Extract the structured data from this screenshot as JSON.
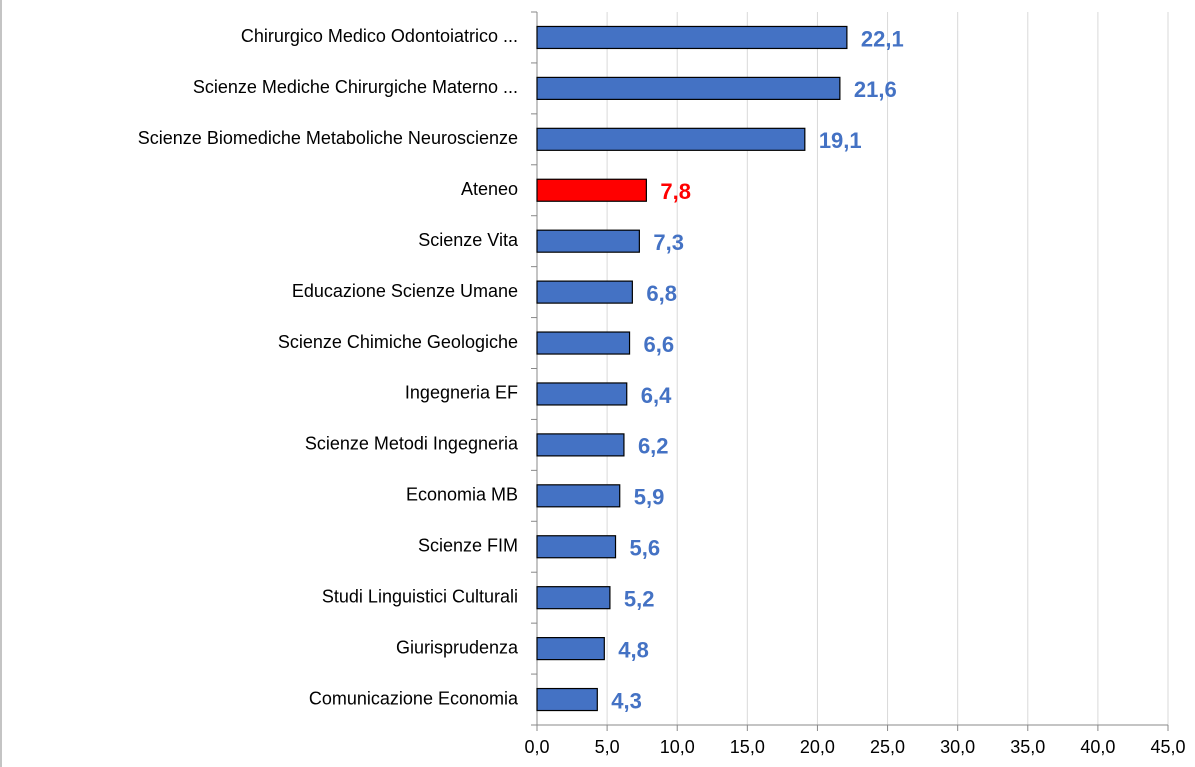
{
  "chart_data": {
    "type": "bar",
    "orientation": "horizontal",
    "categories": [
      "Chirurgico Medico Odontoiatrico ...",
      "Scienze Mediche Chirurgiche Materno ...",
      "Scienze Biomediche Metaboliche Neuroscienze",
      "Ateneo",
      "Scienze Vita",
      "Educazione Scienze Umane",
      "Scienze Chimiche Geologiche",
      "Ingegneria EF",
      "Scienze Metodi Ingegneria",
      "Economia MB",
      "Scienze FIM",
      "Studi Linguistici Culturali",
      "Giurisprudenza",
      "Comunicazione Economia"
    ],
    "values": [
      22.1,
      21.6,
      19.1,
      7.8,
      7.3,
      6.8,
      6.6,
      6.4,
      6.2,
      5.9,
      5.6,
      5.2,
      4.8,
      4.3
    ],
    "value_labels": [
      "22,1",
      "21,6",
      "19,1",
      "7,8",
      "7,3",
      "6,8",
      "6,6",
      "6,4",
      "6,2",
      "5,9",
      "5,6",
      "5,2",
      "4,8",
      "4,3"
    ],
    "colors": [
      "#4472c4",
      "#4472c4",
      "#4472c4",
      "#ff0000",
      "#4472c4",
      "#4472c4",
      "#4472c4",
      "#4472c4",
      "#4472c4",
      "#4472c4",
      "#4472c4",
      "#4472c4",
      "#4472c4",
      "#4472c4"
    ],
    "xlim": [
      0,
      45
    ],
    "xticks": [
      {
        "value": 0,
        "label": "0,0"
      },
      {
        "value": 5,
        "label": "5,0"
      },
      {
        "value": 10,
        "label": "10,0"
      },
      {
        "value": 15,
        "label": "15,0"
      },
      {
        "value": 20,
        "label": "20,0"
      },
      {
        "value": 25,
        "label": "25,0"
      },
      {
        "value": 30,
        "label": "30,0"
      },
      {
        "value": 35,
        "label": "35,0"
      },
      {
        "value": 40,
        "label": "40,0"
      },
      {
        "value": 45,
        "label": "45,0"
      }
    ],
    "grid": true
  }
}
